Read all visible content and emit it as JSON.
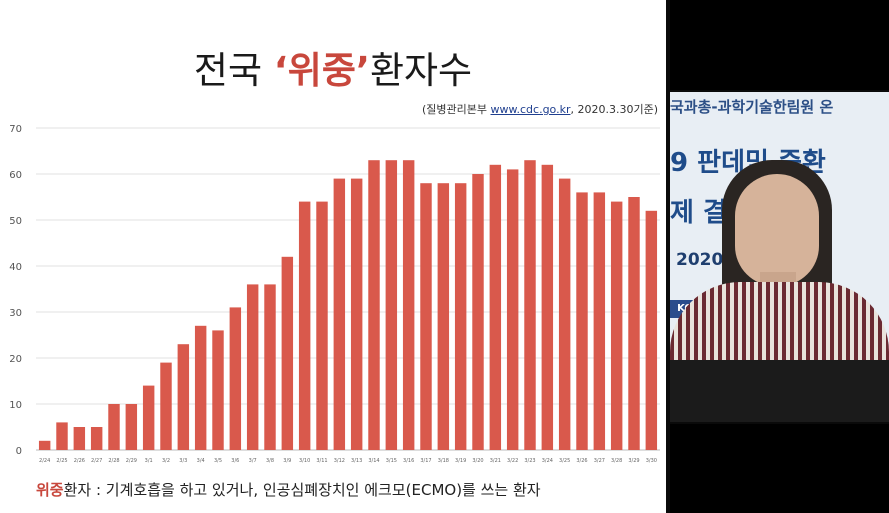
{
  "slide": {
    "title_part1": "전국 ",
    "title_highlight": "‘위중’",
    "title_part2": "환자수",
    "source_prefix": "(질병관리본부 ",
    "source_link": "www.cdc.go.kr",
    "source_suffix": ", 2020.3.30기준)",
    "footnote_highlight": "위중",
    "footnote_rest": "환자 : 기계호흡을 하고 있거나, 인공심폐장치인 에크모(ECMO)를 쓰는 환자"
  },
  "chart_data": {
    "type": "bar",
    "title": "",
    "xlabel": "",
    "ylabel": "",
    "ylim": [
      0,
      70
    ],
    "yticks": [
      0,
      10,
      20,
      30,
      40,
      50,
      60,
      70
    ],
    "grid": true,
    "bar_color": "#d9594c",
    "categories": [
      "2/24",
      "2/25",
      "2/26",
      "2/27",
      "2/28",
      "2/29",
      "3/1",
      "3/2",
      "3/3",
      "3/4",
      "3/5",
      "3/6",
      "3/7",
      "3/8",
      "3/9",
      "3/10",
      "3/11",
      "3/12",
      "3/13",
      "3/14",
      "3/15",
      "3/16",
      "3/17",
      "3/18",
      "3/19",
      "3/20",
      "3/21",
      "3/22",
      "3/23",
      "3/24",
      "3/25",
      "3/26",
      "3/27",
      "3/28",
      "3/29",
      "3/30"
    ],
    "values": [
      2,
      6,
      5,
      5,
      10,
      10,
      14,
      19,
      23,
      27,
      26,
      31,
      36,
      36,
      42,
      54,
      54,
      59,
      59,
      63,
      63,
      63,
      58,
      58,
      58,
      60,
      62,
      61,
      63,
      62,
      59,
      56,
      56,
      54,
      55,
      52
    ]
  },
  "video": {
    "banner_line1": "국과총-과학기술한림원 온",
    "banner_line2": "9 판데믹 중환",
    "banner_line3": "제  결방안",
    "banner_line4": "2020     16:00",
    "logo_text": "KO"
  }
}
